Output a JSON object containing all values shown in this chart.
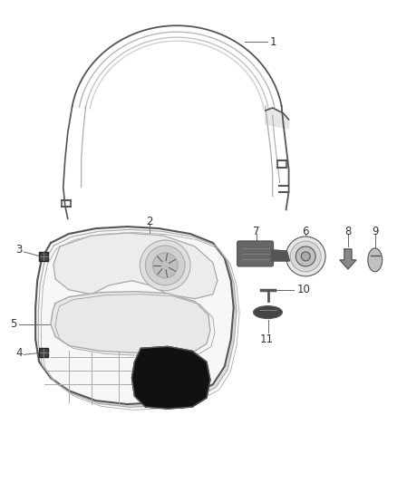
{
  "background_color": "#ffffff",
  "line_color": "#aaaaaa",
  "dark_line_color": "#555555",
  "black_fill": "#111111",
  "label_color": "#333333",
  "label_fontsize": 8.5,
  "figsize": [
    4.38,
    5.33
  ],
  "dpi": 100
}
